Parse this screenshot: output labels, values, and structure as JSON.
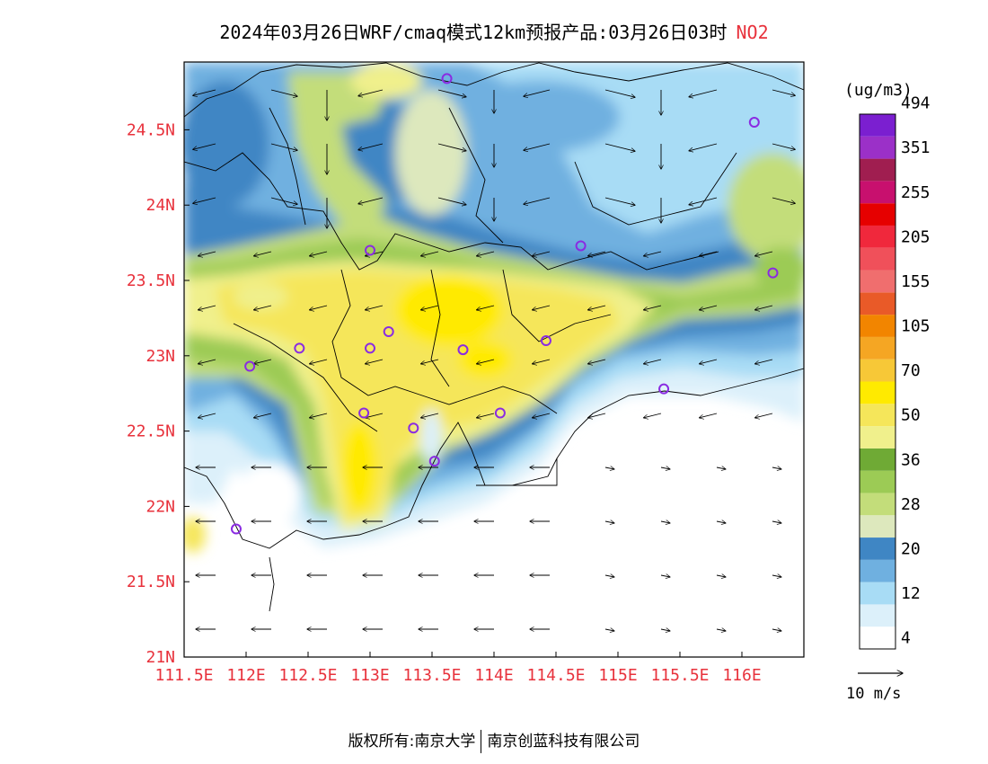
{
  "title": {
    "text": "2024年03月26日WRF/cmaq模式12km预报产品:03月26日03时",
    "pollutant": "NO2"
  },
  "map": {
    "lon_range": [
      111.5,
      116.5
    ],
    "lat_range": [
      21.0,
      24.95
    ],
    "x_ticks": [
      "111.5E",
      "112E",
      "112.5E",
      "113E",
      "113.5E",
      "114E",
      "114.5E",
      "115E",
      "115.5E",
      "116E"
    ],
    "x_tick_values": [
      111.5,
      112.0,
      112.5,
      113.0,
      113.5,
      114.0,
      114.5,
      115.0,
      115.5,
      116.0
    ],
    "y_ticks": [
      "21N",
      "21.5N",
      "22N",
      "22.5N",
      "23N",
      "23.5N",
      "24N",
      "24.5N"
    ],
    "y_tick_values": [
      21.0,
      21.5,
      22.0,
      22.5,
      23.0,
      23.5,
      24.0,
      24.5
    ],
    "tick_label_color": "#e8323c",
    "stations": [
      [
        113.62,
        24.84
      ],
      [
        116.1,
        24.55
      ],
      [
        113.0,
        23.7
      ],
      [
        114.7,
        23.73
      ],
      [
        116.25,
        23.55
      ],
      [
        113.15,
        23.16
      ],
      [
        112.43,
        23.05
      ],
      [
        113.0,
        23.05
      ],
      [
        113.75,
        23.04
      ],
      [
        114.42,
        23.1
      ],
      [
        112.03,
        22.93
      ],
      [
        112.95,
        22.62
      ],
      [
        114.05,
        22.62
      ],
      [
        113.35,
        22.52
      ],
      [
        113.52,
        22.3
      ],
      [
        115.37,
        22.78
      ],
      [
        111.92,
        21.85
      ]
    ],
    "station_color": "#8a2be2"
  },
  "colorbar": {
    "unit": "(ug/m3)",
    "levels": [
      "4",
      "12",
      "20",
      "28",
      "36",
      "50",
      "70",
      "105",
      "155",
      "205",
      "255",
      "351",
      "494"
    ],
    "colors": [
      "#ffffff",
      "#dcf0fa",
      "#a8dcf5",
      "#6fb0e0",
      "#3f86c4",
      "#dde8bd",
      "#c3dd7a",
      "#9ccb55",
      "#6faa35",
      "#f0f08c",
      "#f5e65a",
      "#ffea00",
      "#f7c837",
      "#f5a623",
      "#f28500",
      "#e95a28",
      "#f06e6e",
      "#f0505a",
      "#f0283c",
      "#e60000",
      "#c8106e",
      "#a01e50",
      "#9b30c8",
      "#7b1fd0"
    ]
  },
  "wind_scale": {
    "label": "10 m/s"
  },
  "footer": {
    "left": "版权所有:南京大学",
    "right": "南京创蓝科技有限公司"
  }
}
